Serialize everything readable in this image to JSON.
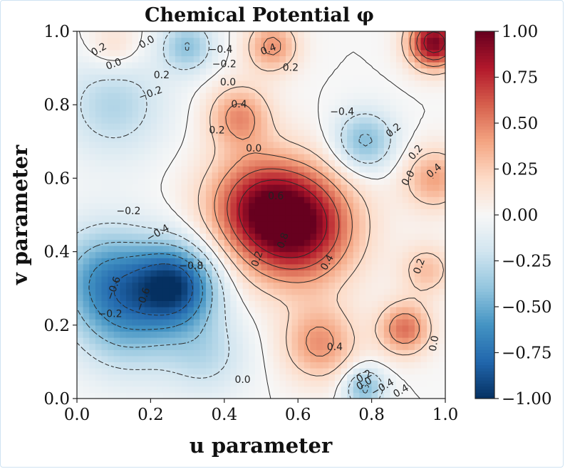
{
  "chart_data": {
    "type": "heatmap",
    "title": "Chemical Potential φ",
    "xlabel": "u parameter",
    "ylabel": "v parameter",
    "xlim": [
      0.0,
      1.0
    ],
    "ylim": [
      0.0,
      1.0
    ],
    "x_ticks": [
      "0.0",
      "0.2",
      "0.4",
      "0.6",
      "0.8",
      "1.0"
    ],
    "y_ticks": [
      "0.0",
      "0.2",
      "0.4",
      "0.6",
      "0.8",
      "1.0"
    ],
    "colorbar": {
      "range": [
        -1.0,
        1.0
      ],
      "ticks": [
        "1.00",
        "0.75",
        "0.50",
        "0.25",
        "0.00",
        "−0.25",
        "−0.50",
        "−0.75",
        "−1.00"
      ],
      "colormap": "RdBu_r"
    },
    "field_blobs": [
      {
        "u": 0.6,
        "v": 0.47,
        "amp": 0.95,
        "s": 0.11
      },
      {
        "u": 0.48,
        "v": 0.53,
        "amp": 0.55,
        "s": 0.1
      },
      {
        "u": 0.44,
        "v": 0.77,
        "amp": 0.45,
        "s": 0.06
      },
      {
        "u": 0.53,
        "v": 0.96,
        "amp": 0.45,
        "s": 0.05
      },
      {
        "u": 0.97,
        "v": 0.97,
        "amp": 0.95,
        "s": 0.05
      },
      {
        "u": 0.89,
        "v": 0.19,
        "amp": 0.55,
        "s": 0.05
      },
      {
        "u": 0.66,
        "v": 0.15,
        "amp": 0.45,
        "s": 0.07
      },
      {
        "u": 0.97,
        "v": 0.6,
        "amp": 0.4,
        "s": 0.06
      },
      {
        "u": 0.95,
        "v": 0.35,
        "amp": 0.3,
        "s": 0.05
      },
      {
        "u": 0.3,
        "v": 0.96,
        "amp": -0.4,
        "s": 0.05
      },
      {
        "u": 0.27,
        "v": 0.31,
        "amp": -0.85,
        "s": 0.08
      },
      {
        "u": 0.08,
        "v": 0.33,
        "amp": -0.55,
        "s": 0.1
      },
      {
        "u": 0.14,
        "v": 0.2,
        "amp": -0.35,
        "s": 0.1
      },
      {
        "u": 0.1,
        "v": 0.8,
        "amp": -0.3,
        "s": 0.1
      },
      {
        "u": 0.78,
        "v": 0.7,
        "amp": -0.45,
        "s": 0.06
      },
      {
        "u": 0.78,
        "v": 0.03,
        "amp": -0.45,
        "s": 0.04
      },
      {
        "u": 0.35,
        "v": 0.12,
        "amp": -0.25,
        "s": 0.08
      },
      {
        "u": 0.1,
        "v": 0.96,
        "amp": 0.2,
        "s": 0.05
      }
    ],
    "contour_levels": [
      -0.8,
      -0.6,
      -0.4,
      -0.2,
      0.0,
      0.2,
      0.4,
      0.6,
      0.8
    ],
    "contour_labels": [
      {
        "text": "0.2",
        "u": 0.06,
        "v": 0.95,
        "angle": -30
      },
      {
        "text": "0.0",
        "u": 0.19,
        "v": 0.97,
        "angle": -30
      },
      {
        "text": "0.0",
        "u": 0.1,
        "v": 0.91,
        "angle": -20
      },
      {
        "text": "0.2",
        "u": 0.23,
        "v": 0.88,
        "angle": 0
      },
      {
        "text": "−0.4",
        "u": 0.39,
        "v": 0.95,
        "angle": 0
      },
      {
        "text": "−0.2",
        "u": 0.4,
        "v": 0.91,
        "angle": 0
      },
      {
        "text": "0.0",
        "u": 0.41,
        "v": 0.86,
        "angle": 0
      },
      {
        "text": "0.4",
        "u": 0.52,
        "v": 0.95,
        "angle": -20
      },
      {
        "text": "0.2",
        "u": 0.58,
        "v": 0.9,
        "angle": 0
      },
      {
        "text": "−0.2",
        "u": 0.2,
        "v": 0.83,
        "angle": -20
      },
      {
        "text": "0.4",
        "u": 0.44,
        "v": 0.8,
        "angle": 0
      },
      {
        "text": "0.2",
        "u": 0.38,
        "v": 0.73,
        "angle": 0
      },
      {
        "text": "0.0",
        "u": 0.48,
        "v": 0.68,
        "angle": 0
      },
      {
        "text": "−0.4",
        "u": 0.72,
        "v": 0.78,
        "angle": 0
      },
      {
        "text": "0.2",
        "u": 0.86,
        "v": 0.73,
        "angle": -40
      },
      {
        "text": "0.2",
        "u": 0.92,
        "v": 0.67,
        "angle": -50
      },
      {
        "text": "0.4",
        "u": 0.97,
        "v": 0.62,
        "angle": -40
      },
      {
        "text": "0.0",
        "u": 0.9,
        "v": 0.6,
        "angle": -60
      },
      {
        "text": "0.6",
        "u": 0.54,
        "v": 0.55,
        "angle": 0
      },
      {
        "text": "0.8",
        "u": 0.56,
        "v": 0.43,
        "angle": -70
      },
      {
        "text": "0.4",
        "u": 0.68,
        "v": 0.37,
        "angle": -60
      },
      {
        "text": "0.2",
        "u": 0.49,
        "v": 0.38,
        "angle": -70
      },
      {
        "text": "−0.2",
        "u": 0.14,
        "v": 0.51,
        "angle": 0
      },
      {
        "text": "−0.4",
        "u": 0.22,
        "v": 0.45,
        "angle": -30
      },
      {
        "text": "−0.8",
        "u": 0.31,
        "v": 0.36,
        "angle": 0
      },
      {
        "text": "−0.6",
        "u": 0.1,
        "v": 0.3,
        "angle": -70
      },
      {
        "text": "−0.6",
        "u": 0.18,
        "v": 0.27,
        "angle": -70
      },
      {
        "text": "−0.2",
        "u": 0.09,
        "v": 0.23,
        "angle": 0
      },
      {
        "text": "0.2",
        "u": 0.93,
        "v": 0.36,
        "angle": -70
      },
      {
        "text": "0.0",
        "u": 0.97,
        "v": 0.15,
        "angle": -80
      },
      {
        "text": "0.4",
        "u": 0.7,
        "v": 0.14,
        "angle": 0
      },
      {
        "text": "0.0",
        "u": 0.45,
        "v": 0.05,
        "angle": 0
      },
      {
        "text": "0.2",
        "u": 0.78,
        "v": 0.06,
        "angle": -30
      },
      {
        "text": "0.0",
        "u": 0.78,
        "v": 0.04,
        "angle": -30
      },
      {
        "text": "−0.4",
        "u": 0.83,
        "v": 0.03,
        "angle": -30
      },
      {
        "text": "0.4",
        "u": 0.88,
        "v": 0.02,
        "angle": -30
      }
    ]
  }
}
